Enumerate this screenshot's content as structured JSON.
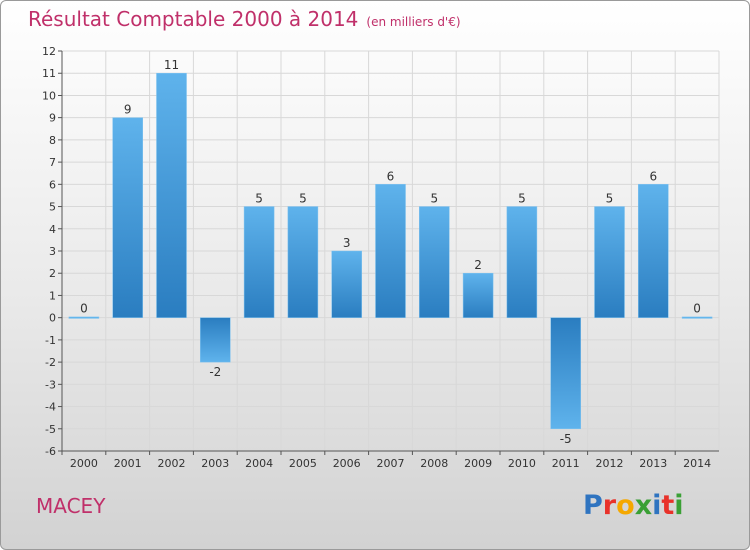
{
  "chart_data": {
    "type": "bar",
    "title": "Résultat Comptable 2000 à 2014",
    "subtitle": "(en milliers d'€)",
    "categories": [
      "2000",
      "2001",
      "2002",
      "2003",
      "2004",
      "2005",
      "2006",
      "2007",
      "2008",
      "2009",
      "2010",
      "2011",
      "2012",
      "2013",
      "2014"
    ],
    "values": [
      0,
      9,
      11,
      -2,
      5,
      5,
      3,
      6,
      5,
      2,
      5,
      -5,
      5,
      6,
      0
    ],
    "ylim": [
      -6,
      12
    ],
    "yticks": [
      -6,
      -5,
      -4,
      -3,
      -2,
      -1,
      0,
      1,
      2,
      3,
      4,
      5,
      6,
      7,
      8,
      9,
      10,
      11,
      12
    ],
    "xlabel": "",
    "ylabel": "",
    "grid": true,
    "legend": "none"
  },
  "footer": {
    "commune": "MACEY",
    "logo_letters": [
      "P",
      "r",
      "o",
      "x",
      "i",
      "t",
      "i"
    ]
  },
  "colors": {
    "title": "#c0306a",
    "bar_light": "#5fb3ec",
    "bar_dark": "#2a7dc0",
    "logo": [
      "#2f74c0",
      "#e8322a",
      "#f5a800",
      "#3aa035",
      "#2f74c0",
      "#e8322a",
      "#3aa035"
    ]
  }
}
